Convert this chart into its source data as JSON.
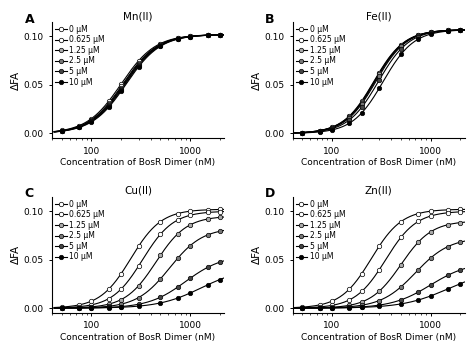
{
  "panels": [
    "A",
    "B",
    "C",
    "D"
  ],
  "titles": [
    "Mn(II)",
    "Fe(II)",
    "Cu(II)",
    "Zn(II)"
  ],
  "xlabel": "Concentration of BosR Dimer (nM)",
  "ylabel": "ΔFA",
  "legend_labels": [
    "0 μM",
    "0.625 μM",
    "1.25 μM",
    "2.5 μM",
    "5 μM",
    "10 μM"
  ],
  "marker_fills": [
    "white",
    "white",
    "#aaaaaa",
    "#777777",
    "#444444",
    "black"
  ],
  "x_lim": [
    40,
    2200
  ],
  "y_lim": [
    -0.005,
    0.115
  ],
  "y_ticks": [
    0.0,
    0.05,
    0.1
  ],
  "hill_params": {
    "A": {
      "Kd": [
        200,
        208,
        212,
        216,
        220,
        225
      ],
      "n": [
        2.5,
        2.5,
        2.5,
        2.5,
        2.5,
        2.5
      ],
      "Fmax": [
        0.102,
        0.102,
        0.102,
        0.102,
        0.102,
        0.102
      ]
    },
    "B": {
      "Kd": [
        265,
        268,
        272,
        278,
        295,
        330
      ],
      "n": [
        2.8,
        2.8,
        2.8,
        2.8,
        2.8,
        2.8
      ],
      "Fmax": [
        0.107,
        0.107,
        0.107,
        0.107,
        0.107,
        0.107
      ]
    },
    "C": {
      "Kd": [
        250,
        330,
        450,
        620,
        900,
        1300
      ],
      "n": [
        2.8,
        2.8,
        2.8,
        2.6,
        2.3,
        2.0
      ],
      "Fmax": [
        0.102,
        0.1,
        0.095,
        0.083,
        0.055,
        0.042
      ]
    },
    "D": {
      "Kd": [
        250,
        350,
        500,
        700,
        1000,
        1500
      ],
      "n": [
        2.8,
        2.8,
        2.8,
        2.5,
        2.2,
        1.9
      ],
      "Fmax": [
        0.102,
        0.1,
        0.09,
        0.073,
        0.048,
        0.04
      ]
    }
  },
  "marker_x": [
    50,
    75,
    100,
    150,
    200,
    300,
    500,
    750,
    1000,
    1500,
    2000
  ]
}
